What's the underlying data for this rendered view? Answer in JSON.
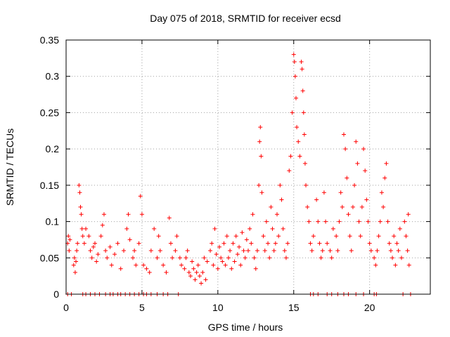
{
  "chart_data": {
    "type": "scatter",
    "title": "Day 075 of 2018, SRMTID for receiver ecsd",
    "xlabel": "GPS time / hours",
    "ylabel": "SRMTID / TECUs",
    "xlim": [
      0,
      24
    ],
    "ylim": [
      0,
      0.35
    ],
    "x_ticks": [
      0,
      5,
      10,
      15,
      20
    ],
    "y_ticks": [
      0,
      0.05,
      0.1,
      0.15,
      0.2,
      0.25,
      0.3,
      0.35
    ],
    "y_tick_labels": [
      "0",
      "0.05",
      "0.1",
      "0.15",
      "0.2",
      "0.25",
      "0.3",
      "0.35"
    ],
    "grid": true,
    "marker": "+",
    "color": "#ff0000",
    "series_name": "SRMTID",
    "points": [
      [
        0.1,
        0.07
      ],
      [
        0.15,
        0.08
      ],
      [
        0.2,
        0.06
      ],
      [
        0.25,
        0.075
      ],
      [
        0.5,
        0.04
      ],
      [
        0.55,
        0.05
      ],
      [
        0.6,
        0.03
      ],
      [
        0.65,
        0.045
      ],
      [
        0.7,
        0.06
      ],
      [
        0.75,
        0.07
      ],
      [
        0.85,
        0.15
      ],
      [
        0.9,
        0.14
      ],
      [
        0.95,
        0.12
      ],
      [
        1.0,
        0.11
      ],
      [
        1.05,
        0.09
      ],
      [
        1.1,
        0.08
      ],
      [
        1.2,
        0.07
      ],
      [
        1.3,
        0.09
      ],
      [
        1.5,
        0.08
      ],
      [
        1.6,
        0.06
      ],
      [
        1.7,
        0.05
      ],
      [
        1.8,
        0.065
      ],
      [
        1.9,
        0.07
      ],
      [
        2.0,
        0.045
      ],
      [
        2.1,
        0.055
      ],
      [
        2.3,
        0.08
      ],
      [
        2.4,
        0.095
      ],
      [
        2.5,
        0.11
      ],
      [
        2.6,
        0.06
      ],
      [
        2.7,
        0.05
      ],
      [
        2.9,
        0.065
      ],
      [
        3.0,
        0.04
      ],
      [
        3.2,
        0.055
      ],
      [
        3.4,
        0.07
      ],
      [
        3.6,
        0.035
      ],
      [
        3.8,
        0.06
      ],
      [
        4.0,
        0.09
      ],
      [
        4.1,
        0.11
      ],
      [
        4.2,
        0.075
      ],
      [
        4.4,
        0.05
      ],
      [
        4.5,
        0.06
      ],
      [
        4.6,
        0.04
      ],
      [
        4.8,
        0.07
      ],
      [
        4.9,
        0.135
      ],
      [
        5.0,
        0.11
      ],
      [
        5.1,
        0.04
      ],
      [
        5.3,
        0.035
      ],
      [
        5.5,
        0.03
      ],
      [
        5.6,
        0.06
      ],
      [
        5.8,
        0.09
      ],
      [
        6.0,
        0.05
      ],
      [
        6.1,
        0.08
      ],
      [
        6.2,
        0.06
      ],
      [
        6.4,
        0.04
      ],
      [
        6.6,
        0.03
      ],
      [
        6.8,
        0.105
      ],
      [
        6.9,
        0.07
      ],
      [
        7.0,
        0.05
      ],
      [
        7.2,
        0.06
      ],
      [
        7.3,
        0.08
      ],
      [
        7.5,
        0.05
      ],
      [
        7.6,
        0.04
      ],
      [
        7.8,
        0.035
      ],
      [
        7.9,
        0.05
      ],
      [
        8.0,
        0.06
      ],
      [
        8.1,
        0.03
      ],
      [
        8.2,
        0.025
      ],
      [
        8.3,
        0.045
      ],
      [
        8.4,
        0.035
      ],
      [
        8.5,
        0.02
      ],
      [
        8.6,
        0.03
      ],
      [
        8.7,
        0.04
      ],
      [
        8.8,
        0.025
      ],
      [
        8.9,
        0.015
      ],
      [
        9.0,
        0.03
      ],
      [
        9.1,
        0.05
      ],
      [
        9.2,
        0.02
      ],
      [
        9.3,
        0.045
      ],
      [
        9.5,
        0.06
      ],
      [
        9.6,
        0.07
      ],
      [
        9.7,
        0.04
      ],
      [
        9.8,
        0.09
      ],
      [
        9.9,
        0.055
      ],
      [
        10.0,
        0.035
      ],
      [
        10.1,
        0.065
      ],
      [
        10.2,
        0.05
      ],
      [
        10.3,
        0.045
      ],
      [
        10.4,
        0.07
      ],
      [
        10.5,
        0.04
      ],
      [
        10.6,
        0.08
      ],
      [
        10.7,
        0.05
      ],
      [
        10.8,
        0.06
      ],
      [
        10.9,
        0.035
      ],
      [
        11.0,
        0.07
      ],
      [
        11.1,
        0.045
      ],
      [
        11.2,
        0.08
      ],
      [
        11.3,
        0.055
      ],
      [
        11.4,
        0.065
      ],
      [
        11.5,
        0.04
      ],
      [
        11.6,
        0.085
      ],
      [
        11.7,
        0.06
      ],
      [
        11.8,
        0.05
      ],
      [
        11.9,
        0.075
      ],
      [
        12.0,
        0.06
      ],
      [
        12.1,
        0.09
      ],
      [
        12.2,
        0.07
      ],
      [
        12.3,
        0.11
      ],
      [
        12.4,
        0.05
      ],
      [
        12.5,
        0.035
      ],
      [
        12.6,
        0.06
      ],
      [
        12.7,
        0.15
      ],
      [
        12.75,
        0.21
      ],
      [
        12.8,
        0.23
      ],
      [
        12.85,
        0.19
      ],
      [
        12.9,
        0.14
      ],
      [
        13.0,
        0.08
      ],
      [
        13.1,
        0.06
      ],
      [
        13.2,
        0.1
      ],
      [
        13.3,
        0.07
      ],
      [
        13.4,
        0.05
      ],
      [
        13.5,
        0.12
      ],
      [
        13.6,
        0.09
      ],
      [
        13.7,
        0.06
      ],
      [
        13.8,
        0.07
      ],
      [
        13.9,
        0.11
      ],
      [
        14.0,
        0.08
      ],
      [
        14.1,
        0.15
      ],
      [
        14.2,
        0.13
      ],
      [
        14.3,
        0.09
      ],
      [
        14.4,
        0.06
      ],
      [
        14.5,
        0.05
      ],
      [
        14.6,
        0.07
      ],
      [
        14.7,
        0.17
      ],
      [
        14.8,
        0.19
      ],
      [
        14.9,
        0.25
      ],
      [
        15.0,
        0.33
      ],
      [
        15.05,
        0.32
      ],
      [
        15.1,
        0.3
      ],
      [
        15.15,
        0.27
      ],
      [
        15.2,
        0.23
      ],
      [
        15.3,
        0.21
      ],
      [
        15.4,
        0.19
      ],
      [
        15.5,
        0.32
      ],
      [
        15.55,
        0.31
      ],
      [
        15.6,
        0.28
      ],
      [
        15.65,
        0.25
      ],
      [
        15.7,
        0.22
      ],
      [
        15.75,
        0.18
      ],
      [
        15.8,
        0.15
      ],
      [
        15.9,
        0.12
      ],
      [
        16.0,
        0.1
      ],
      [
        16.1,
        0.07
      ],
      [
        16.2,
        0.06
      ],
      [
        16.3,
        0.08
      ],
      [
        16.5,
        0.13
      ],
      [
        16.6,
        0.1
      ],
      [
        16.7,
        0.07
      ],
      [
        16.8,
        0.05
      ],
      [
        16.9,
        0.06
      ],
      [
        17.0,
        0.14
      ],
      [
        17.1,
        0.1
      ],
      [
        17.2,
        0.07
      ],
      [
        17.4,
        0.06
      ],
      [
        17.5,
        0.05
      ],
      [
        17.6,
        0.09
      ],
      [
        17.8,
        0.08
      ],
      [
        17.9,
        0.06
      ],
      [
        18.0,
        0.1
      ],
      [
        18.1,
        0.14
      ],
      [
        18.2,
        0.12
      ],
      [
        18.3,
        0.22
      ],
      [
        18.4,
        0.2
      ],
      [
        18.5,
        0.16
      ],
      [
        18.6,
        0.11
      ],
      [
        18.7,
        0.08
      ],
      [
        18.8,
        0.06
      ],
      [
        18.9,
        0.12
      ],
      [
        19.0,
        0.15
      ],
      [
        19.1,
        0.21
      ],
      [
        19.2,
        0.18
      ],
      [
        19.3,
        0.1
      ],
      [
        19.4,
        0.08
      ],
      [
        19.5,
        0.12
      ],
      [
        19.6,
        0.2
      ],
      [
        19.7,
        0.17
      ],
      [
        19.8,
        0.13
      ],
      [
        19.9,
        0.1
      ],
      [
        20.0,
        0.07
      ],
      [
        20.1,
        0.06
      ],
      [
        20.3,
        0.05
      ],
      [
        20.4,
        0.04
      ],
      [
        20.5,
        0.06
      ],
      [
        20.6,
        0.08
      ],
      [
        20.7,
        0.1
      ],
      [
        20.8,
        0.14
      ],
      [
        20.9,
        0.12
      ],
      [
        21.0,
        0.16
      ],
      [
        21.1,
        0.18
      ],
      [
        21.2,
        0.1
      ],
      [
        21.3,
        0.07
      ],
      [
        21.4,
        0.06
      ],
      [
        21.5,
        0.05
      ],
      [
        21.6,
        0.08
      ],
      [
        21.7,
        0.04
      ],
      [
        21.8,
        0.07
      ],
      [
        21.9,
        0.06
      ],
      [
        22.0,
        0.09
      ],
      [
        22.1,
        0.05
      ],
      [
        22.3,
        0.1
      ],
      [
        22.4,
        0.08
      ],
      [
        22.5,
        0.06
      ],
      [
        22.55,
        0.11
      ],
      [
        22.6,
        0.04
      ],
      [
        0.1,
        0
      ],
      [
        0.35,
        0
      ],
      [
        1.1,
        0
      ],
      [
        1.3,
        0
      ],
      [
        1.6,
        0
      ],
      [
        1.9,
        0
      ],
      [
        2.2,
        0
      ],
      [
        2.6,
        0
      ],
      [
        2.9,
        0
      ],
      [
        3.1,
        0
      ],
      [
        3.4,
        0
      ],
      [
        3.6,
        0
      ],
      [
        3.9,
        0
      ],
      [
        4.2,
        0
      ],
      [
        4.5,
        0
      ],
      [
        4.8,
        0
      ],
      [
        5.1,
        0
      ],
      [
        5.3,
        0
      ],
      [
        5.6,
        0
      ],
      [
        6.0,
        0
      ],
      [
        6.4,
        0
      ],
      [
        6.7,
        0
      ],
      [
        7.4,
        0
      ],
      [
        16.1,
        0
      ],
      [
        16.3,
        0
      ],
      [
        16.6,
        0
      ],
      [
        17.2,
        0
      ],
      [
        17.5,
        0
      ],
      [
        17.9,
        0
      ],
      [
        18.3,
        0
      ],
      [
        18.6,
        0
      ],
      [
        19.1,
        0
      ],
      [
        19.6,
        0
      ],
      [
        20.3,
        0
      ],
      [
        20.45,
        0
      ],
      [
        22.2,
        0
      ],
      [
        22.7,
        0
      ]
    ]
  }
}
